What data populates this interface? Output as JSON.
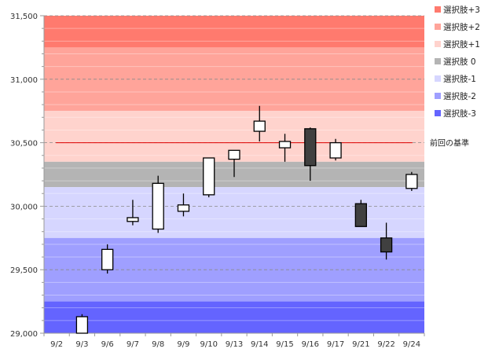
{
  "chart_data": {
    "type": "candlestick",
    "title": "",
    "xlabel": "",
    "ylabel": "",
    "ylim": [
      29000,
      31500
    ],
    "y_ticks": [
      29000,
      29500,
      30000,
      30500,
      31000,
      31500
    ],
    "y_tick_labels": [
      "29,000",
      "29,500",
      "30,000",
      "30,500",
      "31,000",
      "31,500"
    ],
    "minor_gridlines": true,
    "categories": [
      "9/2",
      "9/3",
      "9/6",
      "9/7",
      "9/8",
      "9/9",
      "9/10",
      "9/13",
      "9/14",
      "9/15",
      "9/16",
      "9/17",
      "9/21",
      "9/22",
      "9/24"
    ],
    "candles": [
      null,
      {
        "open": 29000,
        "high": 29150,
        "low": 29000,
        "close": 29130
      },
      {
        "open": 29500,
        "high": 29700,
        "low": 29470,
        "close": 29660
      },
      {
        "open": 29880,
        "high": 30050,
        "low": 29850,
        "close": 29910
      },
      {
        "open": 29820,
        "high": 30240,
        "low": 29790,
        "close": 30180
      },
      {
        "open": 29960,
        "high": 30100,
        "low": 29920,
        "close": 30010
      },
      {
        "open": 30090,
        "high": 30380,
        "low": 30070,
        "close": 30380
      },
      {
        "open": 30370,
        "high": 30440,
        "low": 30230,
        "close": 30440
      },
      {
        "open": 30590,
        "high": 30790,
        "low": 30510,
        "close": 30670
      },
      {
        "open": 30460,
        "high": 30570,
        "low": 30350,
        "close": 30510
      },
      {
        "open": 30610,
        "high": 30620,
        "low": 30200,
        "close": 30320
      },
      {
        "open": 30380,
        "high": 30530,
        "low": 30360,
        "close": 30500
      },
      {
        "open": 30020,
        "high": 30050,
        "low": 29840,
        "close": 29840
      },
      {
        "open": 29750,
        "high": 29870,
        "low": 29580,
        "close": 29640
      },
      {
        "open": 30140,
        "high": 30270,
        "low": 30120,
        "close": 30250
      }
    ],
    "reference_line": {
      "label": "前回の基準",
      "value": 30500,
      "color": "#e00000"
    },
    "bands": [
      {
        "name": "選択肢+3",
        "from": 31250,
        "to": 31500,
        "color": "#ff7a6e"
      },
      {
        "name": "選択肢+2",
        "from": 30750,
        "to": 31250,
        "color": "#ffa49a"
      },
      {
        "name": "選択肢+1",
        "from": 30350,
        "to": 30750,
        "color": "#ffd3cd"
      },
      {
        "name": "選択肢 0",
        "from": 30150,
        "to": 30350,
        "color": "#b4b4b4"
      },
      {
        "name": "選択肢-1",
        "from": 29750,
        "to": 30150,
        "color": "#d6d6ff"
      },
      {
        "name": "選択肢-2",
        "from": 29250,
        "to": 29750,
        "color": "#9f9fff"
      },
      {
        "name": "選択肢-3",
        "from": 29000,
        "to": 29250,
        "color": "#6464ff"
      }
    ],
    "legend": {
      "placement": "right",
      "entries": [
        "選択肢+3",
        "選択肢+2",
        "選択肢+1",
        "選択肢 0",
        "選択肢-1",
        "選択肢-2",
        "選択肢-3"
      ]
    },
    "colors": {
      "up_fill": "#ffffff",
      "down_fill": "#404040",
      "candle_stroke": "#000000"
    }
  }
}
